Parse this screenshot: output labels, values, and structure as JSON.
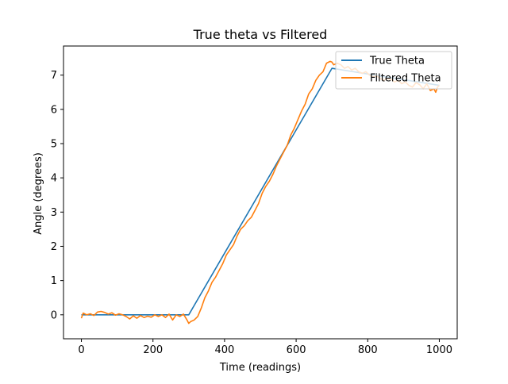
{
  "chart_data": {
    "type": "line",
    "title": "True theta vs Filtered",
    "xlabel": "Time (readings)",
    "ylabel": "Angle (degrees)",
    "xlim": [
      -50,
      1050
    ],
    "ylim": [
      -0.7,
      7.85
    ],
    "xticks": [
      0,
      200,
      400,
      600,
      800,
      1000
    ],
    "xtick_labels": [
      "0",
      "200",
      "400",
      "600",
      "800",
      "1000"
    ],
    "yticks": [
      0,
      1,
      2,
      3,
      4,
      5,
      6,
      7
    ],
    "ytick_labels": [
      "0",
      "1",
      "2",
      "3",
      "4",
      "5",
      "6",
      "7"
    ],
    "grid": false,
    "legend_position": "top-right",
    "series": [
      {
        "name": "True Theta",
        "color": "#1f77b4",
        "x": [
          0,
          300,
          700,
          1000
        ],
        "y": [
          0,
          0,
          7.2,
          6.7
        ]
      },
      {
        "name": "Filtered Theta",
        "color": "#ff7f0e",
        "x": [
          0,
          5,
          15,
          25,
          35,
          45,
          55,
          65,
          75,
          85,
          95,
          105,
          115,
          125,
          135,
          145,
          155,
          165,
          175,
          185,
          195,
          205,
          215,
          225,
          235,
          245,
          255,
          265,
          275,
          285,
          295,
          300,
          305,
          315,
          325,
          335,
          345,
          355,
          365,
          375,
          385,
          395,
          405,
          415,
          425,
          435,
          445,
          455,
          465,
          475,
          485,
          495,
          505,
          515,
          525,
          535,
          545,
          555,
          565,
          575,
          585,
          595,
          605,
          615,
          625,
          635,
          645,
          655,
          665,
          675,
          685,
          695,
          700,
          705,
          715,
          725,
          735,
          745,
          755,
          765,
          775,
          785,
          795,
          805,
          815,
          825,
          835,
          845,
          855,
          865,
          875,
          885,
          895,
          905,
          915,
          925,
          935,
          945,
          955,
          965,
          975,
          985,
          990,
          995,
          1000
        ],
        "y": [
          -0.1,
          0.05,
          0.0,
          0.03,
          -0.02,
          0.08,
          0.1,
          0.07,
          0.02,
          0.06,
          -0.01,
          0.03,
          0.0,
          -0.05,
          -0.12,
          -0.03,
          -0.1,
          -0.02,
          -0.08,
          -0.04,
          -0.07,
          0.0,
          -0.05,
          0.0,
          -0.08,
          0.02,
          -0.15,
          0.0,
          -0.05,
          0.02,
          -0.15,
          -0.25,
          -0.2,
          -0.15,
          -0.05,
          0.2,
          0.5,
          0.7,
          0.95,
          1.1,
          1.3,
          1.5,
          1.75,
          1.9,
          2.05,
          2.3,
          2.5,
          2.6,
          2.75,
          2.85,
          3.05,
          3.25,
          3.55,
          3.75,
          3.9,
          4.1,
          4.35,
          4.55,
          4.75,
          4.95,
          5.25,
          5.45,
          5.7,
          5.95,
          6.15,
          6.45,
          6.6,
          6.85,
          7.0,
          7.1,
          7.35,
          7.4,
          7.38,
          7.3,
          7.35,
          7.3,
          7.2,
          7.25,
          7.15,
          7.2,
          7.1,
          7.05,
          7.1,
          7.0,
          6.95,
          6.98,
          6.9,
          6.85,
          6.9,
          6.88,
          6.8,
          6.85,
          6.75,
          6.8,
          6.7,
          6.65,
          6.78,
          6.72,
          6.6,
          6.75,
          6.55,
          6.6,
          6.5,
          6.65,
          6.7
        ]
      }
    ]
  }
}
